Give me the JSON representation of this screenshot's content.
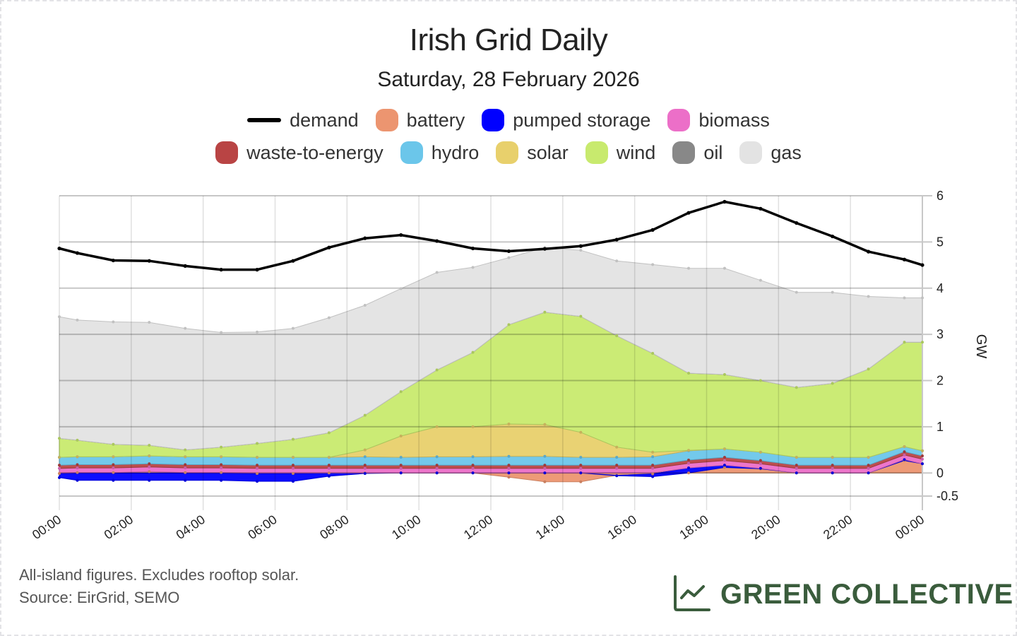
{
  "header": {
    "title": "Irish Grid Daily",
    "subtitle": "Saturday, 28 February 2026"
  },
  "legend": [
    {
      "name": "demand",
      "type": "line",
      "color": "#000000"
    },
    {
      "name": "battery",
      "type": "area",
      "color": "#ec9570"
    },
    {
      "name": "pumped storage",
      "type": "area",
      "color": "#0000ff"
    },
    {
      "name": "biomass",
      "type": "area",
      "color": "#ec6fc8"
    },
    {
      "name": "waste-to-energy",
      "type": "area",
      "color": "#b94444"
    },
    {
      "name": "hydro",
      "type": "area",
      "color": "#6bc6ea"
    },
    {
      "name": "solar",
      "type": "area",
      "color": "#e8d06c"
    },
    {
      "name": "wind",
      "type": "area",
      "color": "#c8ea6e"
    },
    {
      "name": "oil",
      "type": "area",
      "color": "#888888"
    },
    {
      "name": "gas",
      "type": "area",
      "color": "#e3e3e3"
    }
  ],
  "footer": {
    "note": "All-island figures. Excludes rooftop solar.",
    "source": "Source: EirGrid, SEMO",
    "brand": "GREEN COLLECTIVE",
    "brand_icon": "line-chart-icon",
    "brand_color": "#3a5c3c"
  },
  "chart_data": {
    "type": "area",
    "stacked": true,
    "title": "Irish Grid Daily",
    "subtitle": "Saturday, 28 February 2026",
    "xlabel": "",
    "ylabel": "GW",
    "y_axis_side": "right",
    "ylim": [
      -0.5,
      6
    ],
    "yticks": [
      -0.5,
      0,
      1,
      2,
      3,
      4,
      5,
      6
    ],
    "grid": true,
    "legend_position": "top",
    "x_hours": [
      0,
      0.5,
      1.5,
      2.5,
      3.5,
      4.5,
      5.5,
      6.5,
      7.5,
      8.5,
      9.5,
      10.5,
      11.5,
      12.5,
      13.5,
      14.5,
      15.5,
      16.5,
      17.5,
      18.5,
      19.5,
      20.5,
      21.5,
      22.5,
      23.5,
      24
    ],
    "xticks": [
      "00:00",
      "02:00",
      "04:00",
      "06:00",
      "08:00",
      "10:00",
      "12:00",
      "14:00",
      "16:00",
      "18:00",
      "20:00",
      "22:00",
      "00:00"
    ],
    "xtick_hours": [
      0,
      2,
      4,
      6,
      8,
      10,
      12,
      14,
      16,
      18,
      20,
      22,
      24
    ],
    "demand": {
      "name": "demand",
      "values": [
        4.86,
        4.76,
        4.6,
        4.59,
        4.48,
        4.4,
        4.4,
        4.59,
        4.88,
        5.08,
        5.15,
        5.02,
        4.86,
        4.8,
        4.85,
        4.91,
        5.05,
        5.26,
        5.63,
        5.87,
        5.72,
        5.41,
        5.12,
        4.79,
        4.62,
        4.5
      ]
    },
    "series": [
      {
        "name": "battery",
        "values": [
          -0.01,
          0.01,
          0.01,
          0.03,
          0.01,
          0.01,
          -0.01,
          -0.01,
          0.0,
          0.0,
          0.0,
          0.0,
          0.0,
          -0.09,
          -0.19,
          -0.19,
          -0.05,
          -0.02,
          0.0,
          0.12,
          0.09,
          0.0,
          0.0,
          0.0,
          0.27,
          0.2
        ]
      },
      {
        "name": "pumped storage",
        "values": [
          -0.09,
          -0.16,
          -0.16,
          -0.16,
          -0.16,
          -0.16,
          -0.17,
          -0.17,
          -0.07,
          -0.01,
          0.0,
          0.0,
          0.0,
          0.0,
          0.0,
          0.0,
          -0.01,
          -0.06,
          0.11,
          0.05,
          0.01,
          0.0,
          0.0,
          0.0,
          0.02,
          0.0
        ]
      },
      {
        "name": "biomass",
        "values": [
          0.1,
          0.1,
          0.1,
          0.1,
          0.1,
          0.1,
          0.1,
          0.1,
          0.1,
          0.1,
          0.1,
          0.1,
          0.1,
          0.1,
          0.1,
          0.1,
          0.1,
          0.1,
          0.1,
          0.1,
          0.1,
          0.1,
          0.1,
          0.1,
          0.1,
          0.1
        ]
      },
      {
        "name": "waste-to-energy",
        "values": [
          0.07,
          0.07,
          0.07,
          0.07,
          0.07,
          0.07,
          0.07,
          0.07,
          0.07,
          0.07,
          0.07,
          0.07,
          0.07,
          0.07,
          0.07,
          0.07,
          0.07,
          0.07,
          0.07,
          0.07,
          0.07,
          0.07,
          0.07,
          0.07,
          0.07,
          0.07
        ]
      },
      {
        "name": "hydro",
        "values": [
          0.17,
          0.17,
          0.17,
          0.17,
          0.17,
          0.17,
          0.17,
          0.17,
          0.17,
          0.18,
          0.17,
          0.18,
          0.18,
          0.19,
          0.19,
          0.17,
          0.17,
          0.18,
          0.2,
          0.18,
          0.18,
          0.17,
          0.17,
          0.17,
          0.11,
          0.11
        ]
      },
      {
        "name": "solar",
        "values": [
          0,
          0,
          0,
          0,
          0,
          0,
          0,
          0,
          0.0,
          0.15,
          0.46,
          0.65,
          0.65,
          0.7,
          0.69,
          0.54,
          0.22,
          0.1,
          0.01,
          0.0,
          0,
          0,
          0,
          0,
          0,
          0
        ]
      },
      {
        "name": "wind",
        "values": [
          0.41,
          0.36,
          0.27,
          0.23,
          0.15,
          0.21,
          0.3,
          0.39,
          0.53,
          0.75,
          0.96,
          1.23,
          1.61,
          2.15,
          2.43,
          2.51,
          2.41,
          2.14,
          1.67,
          1.61,
          1.55,
          1.51,
          1.6,
          1.91,
          2.26,
          2.35
        ]
      },
      {
        "name": "oil",
        "values": [
          0,
          0,
          0,
          0,
          0,
          0,
          0,
          0,
          0,
          0,
          0,
          0,
          0,
          0,
          0,
          0,
          0,
          0,
          0,
          0,
          0,
          0,
          0,
          0,
          0,
          0
        ]
      },
      {
        "name": "gas",
        "values": [
          2.63,
          2.6,
          2.65,
          2.66,
          2.63,
          2.48,
          2.41,
          2.4,
          2.49,
          2.38,
          2.23,
          2.11,
          1.84,
          1.45,
          1.4,
          1.43,
          1.62,
          1.92,
          2.27,
          2.3,
          2.17,
          2.06,
          1.97,
          1.57,
          0.96,
          0.96
        ]
      }
    ]
  }
}
